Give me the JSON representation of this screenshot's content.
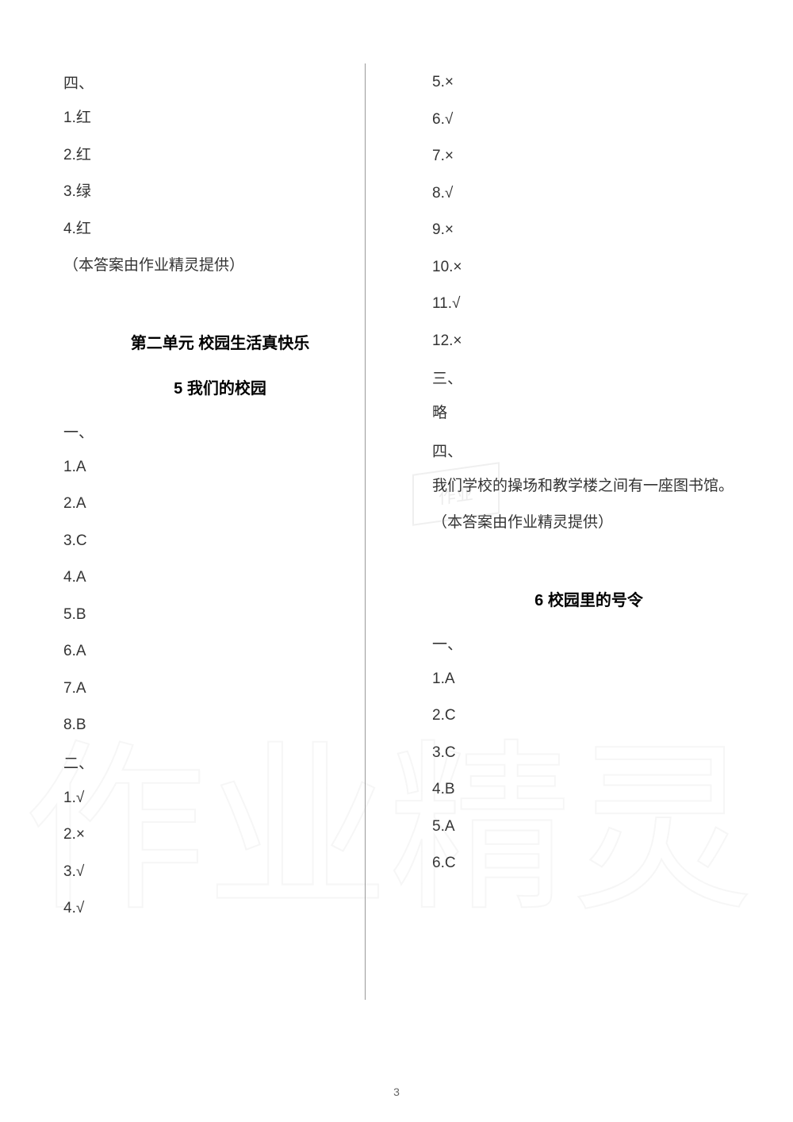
{
  "page_number": "3",
  "colors": {
    "background": "#ffffff",
    "text": "#333333",
    "heading": "#000000",
    "divider": "#999999",
    "page_num": "#666666",
    "watermark": "#aaaaaa"
  },
  "typography": {
    "body_fontsize": 19,
    "title_fontsize": 20,
    "pagenum_fontsize": 14
  },
  "left_column": {
    "section4": {
      "heading": "四、",
      "items": [
        "1.红",
        "2.红",
        "3.绿",
        "4.红"
      ],
      "credit": "（本答案由作业精灵提供）"
    },
    "unit_title": "第二单元 校园生活真快乐",
    "lesson5": {
      "title": "5 我们的校园",
      "section1": {
        "heading": "一、",
        "items": [
          "1.A",
          "2.A",
          "3.C",
          "4.A",
          "5.B",
          "6.A",
          "7.A",
          "8.B"
        ]
      },
      "section2": {
        "heading": "二、",
        "items": [
          "1.√",
          "2.×",
          "3.√",
          "4.√"
        ]
      }
    }
  },
  "right_column": {
    "section2_continued": {
      "items": [
        "5.×",
        "6.√",
        "7.×",
        "8.√",
        "9.×",
        "10.×",
        "11.√",
        "12.×"
      ]
    },
    "section3": {
      "heading": "三、",
      "content": "略"
    },
    "section4": {
      "heading": "四、",
      "content": "我们学校的操场和教学楼之间有一座图书馆。",
      "credit": "（本答案由作业精灵提供）"
    },
    "lesson6": {
      "title": "6 校园里的号令",
      "section1": {
        "heading": "一、",
        "items": [
          "1.A",
          "2.C",
          "3.C",
          "4.B",
          "5.A",
          "6.C"
        ]
      }
    }
  },
  "watermark": {
    "center_text": "作业",
    "bottom_chars": [
      "作",
      "业",
      "精",
      "灵"
    ]
  }
}
